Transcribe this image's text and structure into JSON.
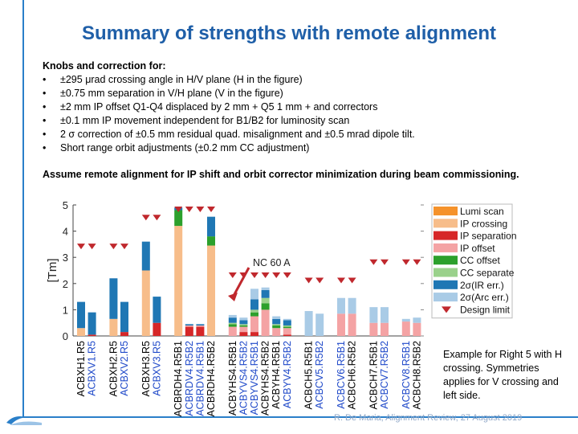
{
  "slide": {
    "title": "Summary of strengths with remote alignment",
    "knobs_heading": "Knobs and correction for:",
    "knobs": [
      "±295 μrad crossing angle in H/V plane (H in the figure)",
      "±0.75 mm separation in V/H plane (V in the figure)",
      "±2 mm IP offset Q1-Q4 displaced by 2 mm + Q5 1 mm + and correctors",
      "±0.1 mm IP movement independent for B1/B2 for luminosity scan",
      "2 σ correction of ±0.5 mm residual quad. misalignment and ±0.5 mrad dipole tilt.",
      "Short range orbit adjustments (±0.2 mm CC adjustment)"
    ],
    "assume_text": "Assume remote alignment for IP shift and orbit corrector minimization during beam commissioning.",
    "note_text": "Example for Right 5 with H crossing. Symmetries applies for V crossing and left side.",
    "footer": "R. De Maria, Alignment Review, 27 August 2019"
  },
  "colors": {
    "title": "#1f5fa8",
    "frame": "#2a7fc9",
    "blue_label": "#1f49c9",
    "black_label": "#000000"
  },
  "chart_data": {
    "type": "bar",
    "stacked": true,
    "ylabel": "[Tm]",
    "ylim": [
      0,
      5
    ],
    "yticks": [
      0,
      1,
      2,
      3,
      4,
      5
    ],
    "annotation": "NC 60 A",
    "series": [
      {
        "name": "Lumi scan",
        "color": "#f5922b"
      },
      {
        "name": "IP crossing",
        "color": "#f7bd8a"
      },
      {
        "name": "IP separation",
        "color": "#d62728"
      },
      {
        "name": "IP offset",
        "color": "#f4a3a4"
      },
      {
        "name": "CC offset",
        "color": "#2ca02c"
      },
      {
        "name": "CC separate",
        "color": "#9ad18b"
      },
      {
        "name": "2σ(IR err.)",
        "color": "#1f77b4"
      },
      {
        "name": "2σ(Arc err.)",
        "color": "#a9cbe6"
      },
      {
        "name": "Design limit",
        "color": "#c0282d",
        "marker": "triangle-down"
      }
    ],
    "groups": [
      {
        "categories": [
          {
            "label": "ACBXH1.R5",
            "blue": false,
            "limit": 3.4,
            "values": [
              0,
              0.3,
              0,
              0,
              0,
              0,
              1.0,
              0
            ]
          },
          {
            "label": "ACBXV1.R5",
            "blue": true,
            "limit": 3.4,
            "values": [
              0,
              0,
              0.05,
              0,
              0,
              0,
              0.85,
              0
            ]
          }
        ]
      },
      {
        "categories": [
          {
            "label": "ACBXH2.R5",
            "blue": false,
            "limit": 3.4,
            "values": [
              0,
              0.65,
              0,
              0,
              0,
              0,
              1.55,
              0
            ]
          },
          {
            "label": "ACBXV2.R5",
            "blue": true,
            "limit": 3.4,
            "values": [
              0,
              0,
              0.15,
              0,
              0,
              0,
              1.15,
              0
            ]
          }
        ]
      },
      {
        "categories": [
          {
            "label": "ACBXH3.R5",
            "blue": false,
            "limit": 4.5,
            "values": [
              0,
              2.5,
              0,
              0,
              0,
              0,
              1.1,
              0
            ]
          },
          {
            "label": "ACBXV3.R5",
            "blue": true,
            "limit": 4.5,
            "values": [
              0,
              0,
              0.5,
              0,
              0,
              0,
              1.0,
              0
            ]
          }
        ]
      },
      {
        "categories": [
          {
            "label": "ACBRDH4.R5B1",
            "blue": false,
            "limit": 5.0,
            "values": [
              0,
              4.2,
              0,
              0,
              0.6,
              0,
              0.1,
              0
            ]
          },
          {
            "label": "ACBRDV4.R5B2",
            "blue": true,
            "limit": 5.0,
            "values": [
              0,
              0,
              0.35,
              0.05,
              0,
              0,
              0.05,
              0
            ]
          },
          {
            "label": "ACBRDV4.R5B1",
            "blue": true,
            "limit": 5.0,
            "values": [
              0,
              0,
              0.35,
              0.05,
              0,
              0,
              0.05,
              0
            ]
          },
          {
            "label": "ACBRDH4.R5B2",
            "blue": false,
            "limit": 5.0,
            "values": [
              0,
              3.45,
              0,
              0,
              0.35,
              0,
              0.75,
              0
            ]
          }
        ]
      },
      {
        "categories": [
          {
            "label": "ACBYHS4.R5B1",
            "blue": false,
            "limit": 2.3,
            "values": [
              0,
              0,
              0,
              0.35,
              0.1,
              0.05,
              0.2,
              0.1
            ]
          },
          {
            "label": "ACBYVS4.R5B2",
            "blue": true,
            "limit": 2.3,
            "values": [
              0,
              0,
              0.15,
              0.2,
              0.05,
              0.05,
              0.15,
              0.1
            ]
          },
          {
            "label": "ACBYVS4.R5B1",
            "blue": true,
            "limit": 2.3,
            "values": [
              0,
              0,
              0.15,
              0.6,
              0.15,
              0.1,
              0.4,
              0.4
            ]
          },
          {
            "label": "ACBYHS4.R5B2",
            "blue": false,
            "limit": 2.3,
            "values": [
              0,
              0,
              0,
              1.0,
              0.25,
              0.2,
              0.3,
              0.1
            ]
          },
          {
            "label": "ACBYH4.R5B1",
            "blue": false,
            "limit": 2.3,
            "values": [
              0,
              0,
              0,
              0.3,
              0.1,
              0.05,
              0.2,
              0.1
            ]
          },
          {
            "label": "ACBYV4.R5B2",
            "blue": true,
            "limit": 2.3,
            "values": [
              0,
              0,
              0.05,
              0.25,
              0.05,
              0.05,
              0.2,
              0.05
            ]
          }
        ]
      },
      {
        "categories": [
          {
            "label": "ACBCH5.R5B1",
            "blue": false,
            "limit": 2.1,
            "values": [
              0,
              0,
              0,
              0,
              0,
              0,
              0,
              0.95
            ]
          },
          {
            "label": "ACBCV5.R5B2",
            "blue": true,
            "limit": 2.1,
            "values": [
              0,
              0,
              0,
              0,
              0,
              0,
              0,
              0.85
            ]
          }
        ]
      },
      {
        "categories": [
          {
            "label": "ACBCV6.R5B1",
            "blue": true,
            "limit": 2.1,
            "values": [
              0,
              0,
              0,
              0.85,
              0,
              0,
              0,
              0.6
            ]
          },
          {
            "label": "ACBCH6.R5B2",
            "blue": false,
            "limit": 2.1,
            "values": [
              0,
              0,
              0,
              0.85,
              0,
              0,
              0,
              0.6
            ]
          }
        ]
      },
      {
        "categories": [
          {
            "label": "ACBCH7.R5B1",
            "blue": false,
            "limit": 2.8,
            "values": [
              0,
              0,
              0,
              0.5,
              0,
              0,
              0,
              0.6
            ]
          },
          {
            "label": "ACBCV7.R5B2",
            "blue": true,
            "limit": 2.8,
            "values": [
              0,
              0,
              0,
              0.5,
              0,
              0,
              0,
              0.6
            ]
          }
        ]
      },
      {
        "categories": [
          {
            "label": "ACBCV8.R5B1",
            "blue": true,
            "limit": 2.8,
            "values": [
              0,
              0,
              0,
              0.55,
              0,
              0,
              0,
              0.1
            ]
          },
          {
            "label": "ACBCH8.R5B2",
            "blue": false,
            "limit": 2.8,
            "values": [
              0,
              0,
              0,
              0.5,
              0,
              0,
              0,
              0.2
            ]
          }
        ]
      }
    ]
  }
}
